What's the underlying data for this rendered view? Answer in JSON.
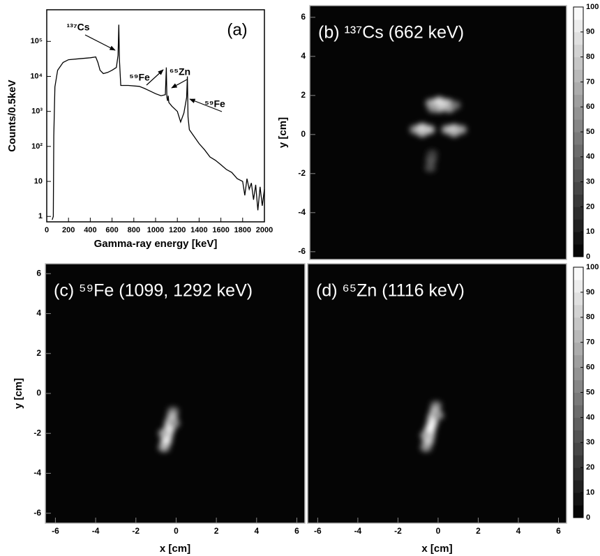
{
  "chart_data": [
    {
      "type": "line",
      "panel_label": "(a)",
      "x_label": "Gamma-ray energy [keV]",
      "y_label": "Counts/0.5keV",
      "x": [
        50,
        60,
        65,
        75,
        100,
        150,
        200,
        300,
        400,
        450,
        470,
        490,
        520,
        560,
        600,
        640,
        655,
        662,
        668,
        680,
        750,
        850,
        900,
        950,
        1000,
        1050,
        1090,
        1099,
        1104,
        1110,
        1116,
        1122,
        1150,
        1200,
        1230,
        1260,
        1285,
        1292,
        1298,
        1310,
        1350,
        1400,
        1450,
        1500,
        1550,
        1600,
        1650,
        1700,
        1750,
        1800,
        1820,
        1840,
        1860,
        1880,
        1900,
        1920,
        1940,
        1960,
        1980,
        2000
      ],
      "values": [
        0.8,
        1,
        200,
        5000,
        15000,
        25000,
        30000,
        32000,
        34000,
        36000,
        25000,
        15000,
        12000,
        13000,
        15000,
        18000,
        40000,
        300000,
        30000,
        5500,
        5500,
        5200,
        4500,
        3800,
        3200,
        2800,
        3000,
        18000,
        2500,
        2000,
        2800,
        1800,
        1400,
        1000,
        500,
        900,
        2500,
        10000,
        700,
        300,
        200,
        120,
        80,
        50,
        40,
        30,
        22,
        18,
        12,
        10,
        4,
        12,
        6,
        9,
        3,
        8,
        1.5,
        7,
        2,
        6
      ],
      "color": "#000000",
      "xlim": [
        0,
        2000
      ],
      "xticks": [
        0,
        200,
        400,
        600,
        800,
        1000,
        1200,
        1400,
        1600,
        1800,
        2000
      ],
      "ylim": [
        0.7,
        800000
      ],
      "log_y": true,
      "yticks": [
        1,
        10,
        {
          "value": 100,
          "label": "10²"
        },
        {
          "value": 1000,
          "label": "10³"
        },
        {
          "value": 10000,
          "label": "10⁴"
        },
        {
          "value": 100000,
          "label": "10⁵"
        }
      ],
      "annotations": [
        {
          "text": "¹³⁷Cs"
        },
        {
          "text": "⁵⁹Fe"
        },
        {
          "text": "⁶⁵Zn"
        },
        {
          "text": "⁵⁹Fe"
        }
      ]
    },
    {
      "type": "heatmap",
      "title": "(b) ¹³⁷Cs (662 keV)",
      "y_label": "y [cm]",
      "x": [
        -0.4,
        0,
        0.4,
        0,
        0.5,
        -0.3,
        0.8,
        -1.2,
        -0.85,
        -0.5,
        -0.85,
        0.4,
        0.75,
        1.1,
        0.75,
        -0.4,
        -0.45,
        -0.35
      ],
      "y": [
        1.6,
        1.7,
        1.6,
        1.35,
        1.35,
        1.35,
        1.5,
        0.25,
        0.35,
        0.25,
        0.1,
        0.25,
        0.3,
        0.25,
        0.1,
        -1.3,
        -1.7,
        -1.0
      ],
      "values": [
        70,
        90,
        85,
        80,
        70,
        60,
        45,
        60,
        90,
        80,
        75,
        70,
        90,
        65,
        70,
        35,
        30,
        25
      ],
      "xlim": [
        -6.5,
        6.4
      ],
      "ylim": [
        -6.4,
        6.6
      ],
      "yticks": [
        -6,
        -4,
        -2,
        0,
        2,
        4,
        6
      ],
      "zlim": [
        0,
        100
      ],
      "colorbar": true,
      "zticks": [
        0,
        10,
        20,
        30,
        40,
        50,
        60,
        70,
        80,
        90,
        100
      ]
    },
    {
      "type": "heatmap",
      "title": "(c) ⁵⁹Fe (1099, 1292 keV)",
      "x_label": "x [cm]",
      "y_label": "y [cm]",
      "x": [
        -0.15,
        -0.2,
        -0.3,
        -0.35,
        -0.45,
        -0.5,
        -0.6,
        -0.1,
        -0.6
      ],
      "y": [
        -0.9,
        -1.2,
        -1.5,
        -1.8,
        -2.1,
        -2.4,
        -2.7,
        -1.5,
        -2.0
      ],
      "values": [
        50,
        75,
        85,
        95,
        100,
        95,
        70,
        60,
        70
      ],
      "xlim": [
        -6.5,
        6.4
      ],
      "ylim": [
        -6.5,
        6.5
      ],
      "xticks": [
        -6,
        -4,
        -2,
        0,
        2,
        4,
        6
      ],
      "yticks": [
        -6,
        -4,
        -2,
        0,
        2,
        4,
        6
      ],
      "zlim": [
        0,
        100
      ]
    },
    {
      "type": "heatmap",
      "title": "(d) ⁶⁵Zn (1116 keV)",
      "x_label": "x [cm]",
      "x": [
        -0.1,
        -0.15,
        -0.25,
        -0.3,
        -0.4,
        -0.45,
        -0.5,
        -0.6,
        0,
        -0.6
      ],
      "y": [
        -0.6,
        -0.9,
        -1.2,
        -1.5,
        -1.8,
        -2.1,
        -2.4,
        -2.7,
        -1.1,
        -2.1
      ],
      "values": [
        50,
        75,
        85,
        95,
        100,
        95,
        85,
        60,
        60,
        70
      ],
      "xlim": [
        -6.5,
        6.4
      ],
      "ylim": [
        -6.5,
        6.5
      ],
      "xticks": [
        -6,
        -4,
        -2,
        0,
        2,
        4,
        6
      ],
      "zlim": [
        0,
        100
      ],
      "colorbar": true,
      "zticks": [
        0,
        10,
        20,
        30,
        40,
        50,
        60,
        70,
        80,
        90,
        100
      ]
    }
  ]
}
